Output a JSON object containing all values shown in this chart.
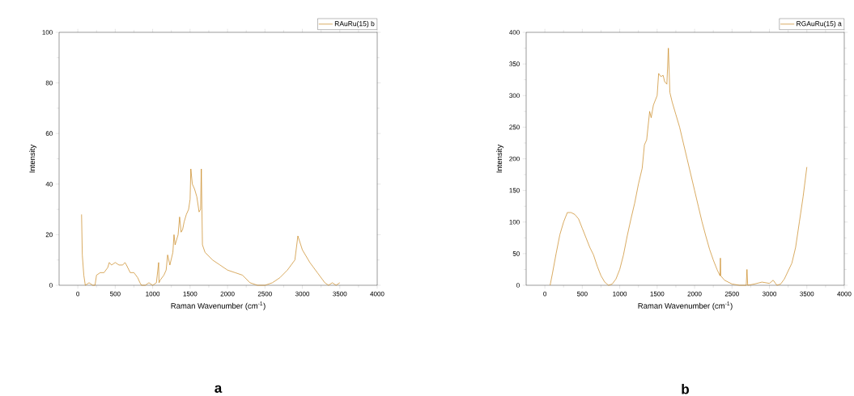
{
  "chart_data": [
    {
      "type": "line",
      "xlabel": "Raman Wavenumber (cm$^{-1}$)",
      "ylabel": "Intensity",
      "annotations": [
        "a"
      ],
      "legend": "top right",
      "xlim": [
        -250,
        4000
      ],
      "ylim": [
        0,
        100
      ],
      "xticks": [
        0,
        500,
        1000,
        1500,
        2000,
        2500,
        3000,
        3500,
        4000
      ],
      "yticks": [
        0,
        20,
        40,
        60,
        80,
        100
      ],
      "series": [
        {
          "name": "RAuRu(15) b",
          "color": "#c8861e",
          "x": [
            50,
            60,
            80,
            100,
            150,
            200,
            230,
            250,
            300,
            350,
            400,
            420,
            450,
            500,
            550,
            600,
            630,
            650,
            700,
            750,
            800,
            830,
            850,
            900,
            950,
            1000,
            1050,
            1080,
            1085,
            1100,
            1150,
            1180,
            1200,
            1230,
            1270,
            1285,
            1300,
            1340,
            1360,
            1380,
            1400,
            1420,
            1450,
            1480,
            1500,
            1510,
            1530,
            1560,
            1590,
            1620,
            1640,
            1650,
            1665,
            1700,
            1800,
            1900,
            2000,
            2100,
            2200,
            2300,
            2400,
            2500,
            2600,
            2700,
            2800,
            2900,
            2940,
            3000,
            3100,
            3200,
            3300,
            3350,
            3400,
            3450,
            3500
          ],
          "values": [
            28,
            12,
            4,
            0,
            1,
            0,
            0,
            4,
            5,
            5,
            7,
            9,
            8,
            9,
            8,
            8,
            9,
            8,
            5,
            5,
            3,
            1,
            0,
            0,
            1,
            0,
            1,
            9,
            1,
            2,
            4,
            6,
            12,
            8,
            13,
            20,
            16,
            20,
            27,
            21,
            22,
            25,
            28,
            30,
            34,
            46,
            40,
            38,
            35,
            29,
            30,
            46,
            16,
            13,
            10,
            8,
            6,
            5,
            4,
            1,
            0,
            0,
            1,
            3,
            6,
            10,
            19.5,
            14,
            9,
            5,
            1,
            0,
            1,
            0,
            1
          ]
        }
      ]
    },
    {
      "type": "line",
      "xlabel": "Raman Wavenumber (cm$^{-1}$)",
      "ylabel": "Intensity",
      "annotations": [
        "b"
      ],
      "legend": "top right",
      "xlim": [
        -250,
        4000
      ],
      "ylim": [
        0,
        400
      ],
      "xticks": [
        0,
        500,
        1000,
        1500,
        2000,
        2500,
        3000,
        3500,
        4000
      ],
      "yticks": [
        0,
        50,
        100,
        150,
        200,
        250,
        300,
        350,
        400
      ],
      "series": [
        {
          "name": "RGAuRu(15) a",
          "color": "#c8861e",
          "x": [
            70,
            100,
            150,
            200,
            250,
            300,
            350,
            400,
            450,
            500,
            550,
            600,
            650,
            700,
            750,
            800,
            850,
            900,
            950,
            1000,
            1050,
            1100,
            1150,
            1200,
            1250,
            1300,
            1330,
            1360,
            1400,
            1420,
            1450,
            1500,
            1520,
            1550,
            1580,
            1600,
            1630,
            1650,
            1670,
            1700,
            1750,
            1800,
            1850,
            1900,
            1950,
            2000,
            2050,
            2100,
            2150,
            2200,
            2250,
            2300,
            2340,
            2345,
            2350,
            2400,
            2500,
            2600,
            2690,
            2700,
            2710,
            2800,
            2900,
            3000,
            3050,
            3100,
            3150,
            3200,
            3300,
            3350,
            3400,
            3450,
            3500
          ],
          "values": [
            0,
            18,
            50,
            80,
            100,
            115,
            115,
            112,
            105,
            90,
            75,
            60,
            48,
            30,
            15,
            5,
            0,
            2,
            10,
            25,
            48,
            78,
            105,
            130,
            160,
            185,
            222,
            230,
            275,
            265,
            285,
            300,
            335,
            330,
            332,
            322,
            318,
            375,
            305,
            290,
            270,
            250,
            225,
            200,
            175,
            150,
            125,
            100,
            78,
            57,
            40,
            25,
            15,
            43,
            15,
            8,
            2,
            0,
            0,
            25,
            0,
            2,
            5,
            3,
            8,
            0,
            2,
            10,
            35,
            60,
            100,
            140,
            187
          ]
        }
      ]
    }
  ]
}
